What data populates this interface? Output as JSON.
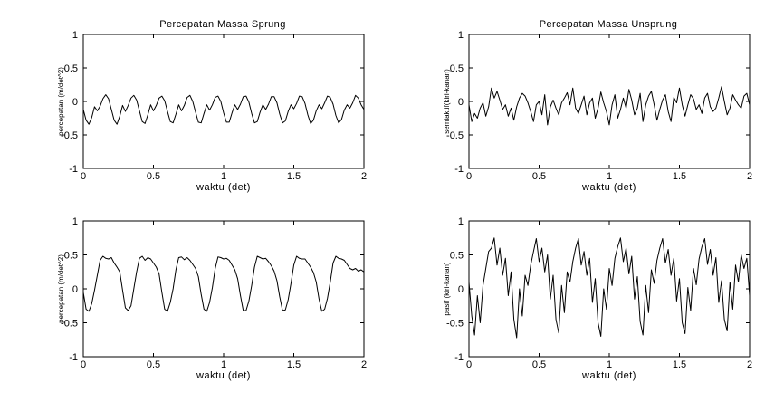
{
  "chart_data": [
    {
      "type": "line",
      "title": "Percepatan Massa Sprung",
      "xlabel": "waktu (det)",
      "ylabel": "percepatan (m/det^2)",
      "xlim": [
        0,
        2
      ],
      "ylim": [
        -1,
        1
      ],
      "xticks": [
        "0",
        "0.5",
        "1",
        "1.5",
        "2"
      ],
      "yticks": [
        "-1",
        "-0.5",
        "0",
        "0.5",
        "1"
      ],
      "x": [
        0,
        0.02,
        0.04,
        0.06,
        0.08,
        0.1,
        0.12,
        0.14,
        0.16,
        0.18,
        0.2,
        0.22,
        0.24,
        0.26,
        0.28,
        0.3,
        0.32,
        0.34,
        0.36,
        0.38,
        0.4,
        0.42,
        0.44,
        0.46,
        0.48,
        0.5,
        0.52,
        0.54,
        0.56,
        0.58,
        0.6,
        0.62,
        0.64,
        0.66,
        0.68,
        0.7,
        0.72,
        0.74,
        0.76,
        0.78,
        0.8,
        0.82,
        0.84,
        0.86,
        0.88,
        0.9,
        0.92,
        0.94,
        0.96,
        0.98,
        1.0,
        1.02,
        1.04,
        1.06,
        1.08,
        1.1,
        1.12,
        1.14,
        1.16,
        1.18,
        1.2,
        1.22,
        1.24,
        1.26,
        1.28,
        1.3,
        1.32,
        1.34,
        1.36,
        1.38,
        1.4,
        1.42,
        1.44,
        1.46,
        1.48,
        1.5,
        1.52,
        1.54,
        1.56,
        1.58,
        1.6,
        1.62,
        1.64,
        1.66,
        1.68,
        1.7,
        1.72,
        1.74,
        1.76,
        1.78,
        1.8,
        1.82,
        1.84,
        1.86,
        1.88,
        1.9,
        1.92,
        1.94,
        1.96,
        1.98,
        2.0
      ],
      "values": [
        -0.12,
        -0.28,
        -0.34,
        -0.24,
        -0.08,
        -0.14,
        -0.07,
        0.04,
        0.1,
        0.04,
        -0.12,
        -0.28,
        -0.34,
        -0.22,
        -0.06,
        -0.15,
        -0.06,
        0.05,
        0.09,
        0.02,
        -0.14,
        -0.3,
        -0.33,
        -0.2,
        -0.05,
        -0.14,
        -0.06,
        0.05,
        0.08,
        0.01,
        -0.15,
        -0.3,
        -0.32,
        -0.19,
        -0.05,
        -0.14,
        -0.06,
        0.06,
        0.09,
        0.0,
        -0.16,
        -0.31,
        -0.32,
        -0.18,
        -0.05,
        -0.13,
        -0.05,
        0.06,
        0.08,
        0.0,
        -0.17,
        -0.31,
        -0.31,
        -0.17,
        -0.05,
        -0.12,
        -0.04,
        0.07,
        0.08,
        -0.01,
        -0.18,
        -0.32,
        -0.3,
        -0.16,
        -0.05,
        -0.12,
        -0.04,
        0.07,
        0.07,
        -0.02,
        -0.19,
        -0.32,
        -0.29,
        -0.15,
        -0.05,
        -0.11,
        -0.03,
        0.08,
        0.07,
        -0.03,
        -0.2,
        -0.33,
        -0.28,
        -0.14,
        -0.05,
        -0.11,
        -0.02,
        0.08,
        0.06,
        -0.04,
        -0.21,
        -0.32,
        -0.27,
        -0.13,
        -0.05,
        -0.1,
        -0.02,
        0.09,
        0.05,
        -0.05,
        -0.12
      ]
    },
    {
      "type": "line",
      "title": "Percepatan Massa Unsprung",
      "xlabel": "waktu (det)",
      "ylabel": "semiaktif(kiri-kanan)",
      "xlim": [
        0,
        2
      ],
      "ylim": [
        -1,
        1
      ],
      "xticks": [
        "0",
        "0.5",
        "1",
        "1.5",
        "2"
      ],
      "yticks": [
        "-1",
        "-0.5",
        "0",
        "0.5",
        "1"
      ],
      "x": [
        0,
        0.02,
        0.04,
        0.06,
        0.08,
        0.1,
        0.12,
        0.14,
        0.16,
        0.18,
        0.2,
        0.22,
        0.24,
        0.26,
        0.28,
        0.3,
        0.32,
        0.34,
        0.36,
        0.38,
        0.4,
        0.42,
        0.44,
        0.46,
        0.48,
        0.5,
        0.52,
        0.54,
        0.56,
        0.58,
        0.6,
        0.62,
        0.64,
        0.66,
        0.68,
        0.7,
        0.72,
        0.74,
        0.76,
        0.78,
        0.8,
        0.82,
        0.84,
        0.86,
        0.88,
        0.9,
        0.92,
        0.94,
        0.96,
        0.98,
        1.0,
        1.02,
        1.04,
        1.06,
        1.08,
        1.1,
        1.12,
        1.14,
        1.16,
        1.18,
        1.2,
        1.22,
        1.24,
        1.26,
        1.28,
        1.3,
        1.32,
        1.34,
        1.36,
        1.38,
        1.4,
        1.42,
        1.44,
        1.46,
        1.48,
        1.5,
        1.52,
        1.54,
        1.56,
        1.58,
        1.6,
        1.62,
        1.64,
        1.66,
        1.68,
        1.7,
        1.72,
        1.74,
        1.76,
        1.78,
        1.8,
        1.82,
        1.84,
        1.86,
        1.88,
        1.9,
        1.92,
        1.94,
        1.96,
        1.98,
        2.0
      ],
      "values": [
        -0.05,
        -0.3,
        -0.18,
        -0.25,
        -0.1,
        -0.02,
        -0.22,
        -0.08,
        0.2,
        0.05,
        0.15,
        0.02,
        -0.12,
        -0.05,
        -0.22,
        -0.1,
        -0.28,
        -0.08,
        0.05,
        0.12,
        0.08,
        -0.02,
        -0.15,
        -0.3,
        -0.05,
        0.0,
        -0.2,
        0.1,
        -0.35,
        -0.08,
        0.02,
        -0.1,
        -0.2,
        -0.02,
        0.05,
        0.13,
        -0.05,
        0.2,
        -0.1,
        -0.18,
        -0.05,
        0.08,
        -0.2,
        -0.02,
        0.05,
        -0.25,
        -0.1,
        0.14,
        -0.02,
        -0.15,
        -0.35,
        -0.05,
        0.1,
        -0.25,
        -0.12,
        0.05,
        -0.1,
        0.18,
        0.02,
        -0.2,
        -0.1,
        0.12,
        -0.3,
        -0.05,
        0.08,
        0.15,
        -0.05,
        -0.28,
        -0.12,
        0.02,
        0.1,
        -0.15,
        -0.3,
        0.06,
        -0.02,
        0.2,
        -0.05,
        -0.22,
        -0.05,
        0.1,
        0.04,
        -0.12,
        -0.05,
        -0.18,
        0.05,
        0.12,
        -0.08,
        -0.15,
        -0.1,
        0.05,
        0.22,
        0.0,
        -0.2,
        -0.1,
        0.1,
        0.02,
        -0.05,
        -0.1,
        0.08,
        0.12,
        -0.05
      ]
    },
    {
      "type": "line",
      "title": "",
      "xlabel": "waktu (det)",
      "ylabel": "percepatan (m/det^2)",
      "xlim": [
        0,
        2
      ],
      "ylim": [
        -1,
        1
      ],
      "xticks": [
        "0",
        "0.5",
        "1",
        "1.5",
        "2"
      ],
      "yticks": [
        "-1",
        "-0.5",
        "0",
        "0.5",
        "1"
      ],
      "x": [
        0,
        0.02,
        0.04,
        0.06,
        0.08,
        0.1,
        0.12,
        0.14,
        0.16,
        0.18,
        0.2,
        0.22,
        0.24,
        0.26,
        0.28,
        0.3,
        0.32,
        0.34,
        0.36,
        0.38,
        0.4,
        0.42,
        0.44,
        0.46,
        0.48,
        0.5,
        0.52,
        0.54,
        0.56,
        0.58,
        0.6,
        0.62,
        0.64,
        0.66,
        0.68,
        0.7,
        0.72,
        0.74,
        0.76,
        0.78,
        0.8,
        0.82,
        0.84,
        0.86,
        0.88,
        0.9,
        0.92,
        0.94,
        0.96,
        0.98,
        1.0,
        1.02,
        1.04,
        1.06,
        1.08,
        1.1,
        1.12,
        1.14,
        1.16,
        1.18,
        1.2,
        1.22,
        1.24,
        1.26,
        1.28,
        1.3,
        1.32,
        1.34,
        1.36,
        1.38,
        1.4,
        1.42,
        1.44,
        1.46,
        1.48,
        1.5,
        1.52,
        1.54,
        1.56,
        1.58,
        1.6,
        1.62,
        1.64,
        1.66,
        1.68,
        1.7,
        1.72,
        1.74,
        1.76,
        1.78,
        1.8,
        1.82,
        1.84,
        1.86,
        1.88,
        1.9,
        1.92,
        1.94,
        1.96,
        1.98,
        2.0
      ],
      "values": [
        -0.05,
        -0.3,
        -0.33,
        -0.22,
        -0.02,
        0.2,
        0.42,
        0.48,
        0.45,
        0.44,
        0.46,
        0.38,
        0.32,
        0.25,
        -0.02,
        -0.28,
        -0.32,
        -0.25,
        0.0,
        0.25,
        0.45,
        0.48,
        0.42,
        0.46,
        0.44,
        0.38,
        0.32,
        0.22,
        -0.05,
        -0.3,
        -0.33,
        -0.2,
        0.0,
        0.28,
        0.46,
        0.47,
        0.43,
        0.46,
        0.42,
        0.36,
        0.3,
        0.18,
        -0.08,
        -0.3,
        -0.33,
        -0.2,
        0.02,
        0.3,
        0.47,
        0.46,
        0.44,
        0.45,
        0.42,
        0.35,
        0.28,
        0.15,
        -0.1,
        -0.32,
        -0.32,
        -0.18,
        0.05,
        0.32,
        0.48,
        0.46,
        0.44,
        0.45,
        0.4,
        0.34,
        0.26,
        0.12,
        -0.12,
        -0.32,
        -0.31,
        -0.16,
        0.08,
        0.35,
        0.48,
        0.45,
        0.44,
        0.44,
        0.38,
        0.32,
        0.24,
        0.1,
        -0.15,
        -0.33,
        -0.3,
        -0.14,
        0.1,
        0.38,
        0.48,
        0.45,
        0.44,
        0.42,
        0.36,
        0.3,
        0.28,
        0.3,
        0.26,
        0.28,
        0.25
      ]
    },
    {
      "type": "line",
      "title": "",
      "xlabel": "waktu (det)",
      "ylabel": "pasif (kiri-kanan)",
      "xlim": [
        0,
        2
      ],
      "ylim": [
        -1,
        1
      ],
      "xticks": [
        "0",
        "0.5",
        "1",
        "1.5",
        "2"
      ],
      "yticks": [
        "-1",
        "-0.5",
        "0",
        "0.5",
        "1"
      ],
      "x": [
        0,
        0.02,
        0.04,
        0.06,
        0.08,
        0.1,
        0.12,
        0.14,
        0.16,
        0.18,
        0.2,
        0.22,
        0.24,
        0.26,
        0.28,
        0.3,
        0.32,
        0.34,
        0.36,
        0.38,
        0.4,
        0.42,
        0.44,
        0.46,
        0.48,
        0.5,
        0.52,
        0.54,
        0.56,
        0.58,
        0.6,
        0.62,
        0.64,
        0.66,
        0.68,
        0.7,
        0.72,
        0.74,
        0.76,
        0.78,
        0.8,
        0.82,
        0.84,
        0.86,
        0.88,
        0.9,
        0.92,
        0.94,
        0.96,
        0.98,
        1.0,
        1.02,
        1.04,
        1.06,
        1.08,
        1.1,
        1.12,
        1.14,
        1.16,
        1.18,
        1.2,
        1.22,
        1.24,
        1.26,
        1.28,
        1.3,
        1.32,
        1.34,
        1.36,
        1.38,
        1.4,
        1.42,
        1.44,
        1.46,
        1.48,
        1.5,
        1.52,
        1.54,
        1.56,
        1.58,
        1.6,
        1.62,
        1.64,
        1.66,
        1.68,
        1.7,
        1.72,
        1.74,
        1.76,
        1.78,
        1.8,
        1.82,
        1.84,
        1.86,
        1.88,
        1.9,
        1.92,
        1.94,
        1.96,
        1.98,
        2.0
      ],
      "values": [
        0.1,
        -0.4,
        -0.68,
        -0.1,
        -0.5,
        0.05,
        0.3,
        0.55,
        0.6,
        0.75,
        0.35,
        0.6,
        0.2,
        0.45,
        -0.1,
        0.25,
        -0.45,
        -0.72,
        0.0,
        -0.4,
        0.2,
        0.05,
        0.35,
        0.55,
        0.74,
        0.4,
        0.6,
        0.25,
        0.5,
        -0.15,
        0.2,
        -0.45,
        -0.65,
        0.05,
        -0.35,
        0.25,
        0.1,
        0.4,
        0.6,
        0.74,
        0.35,
        0.55,
        0.2,
        0.45,
        -0.2,
        0.15,
        -0.5,
        -0.7,
        0.0,
        -0.3,
        0.3,
        0.05,
        0.45,
        0.62,
        0.75,
        0.4,
        0.6,
        0.22,
        0.48,
        -0.15,
        0.18,
        -0.48,
        -0.68,
        0.05,
        -0.35,
        0.28,
        0.08,
        0.42,
        0.6,
        0.74,
        0.38,
        0.58,
        0.2,
        0.45,
        -0.18,
        0.15,
        -0.5,
        -0.66,
        0.02,
        -0.32,
        0.3,
        0.06,
        0.44,
        0.62,
        0.74,
        0.36,
        0.58,
        0.2,
        0.46,
        -0.2,
        0.12,
        -0.45,
        -0.62,
        0.1,
        -0.3,
        0.35,
        0.1,
        0.5,
        0.3,
        0.45,
        -0.1
      ]
    }
  ]
}
